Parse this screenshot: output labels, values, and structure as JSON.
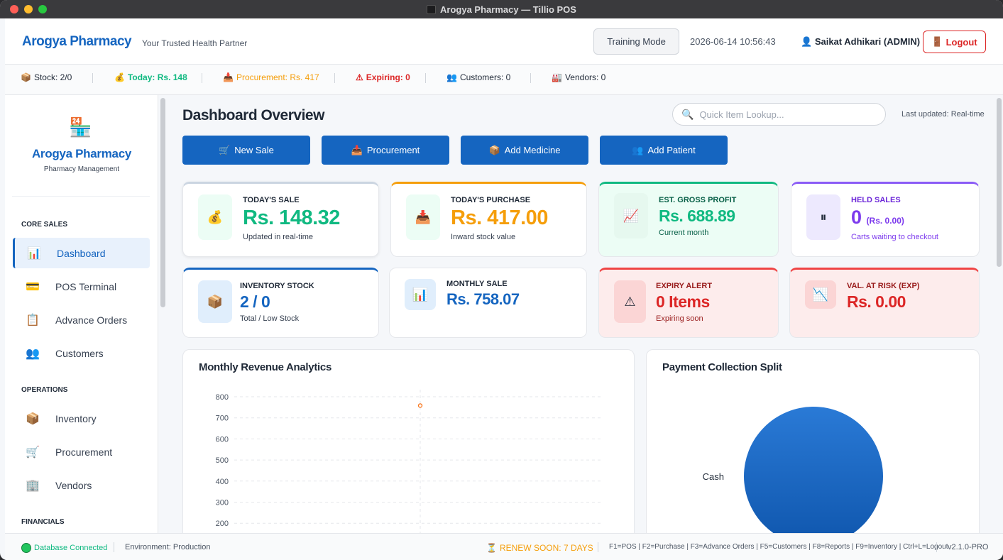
{
  "window": {
    "title": "Arogya Pharmacy — Tillio POS"
  },
  "header": {
    "brand": "Arogya Pharmacy",
    "tagline": "Your Trusted Health Partner",
    "training_mode": "Training Mode",
    "datetime": "2026-06-14 10:56:43",
    "user": "Saikat Adhikari (ADMIN)",
    "logout": "Logout"
  },
  "status_strip": {
    "stock": "Stock: 2/0",
    "today": "Today: Rs. 148",
    "procurement": "Procurement: Rs. 417",
    "expiring": "Expiring: 0",
    "customers": "Customers: 0",
    "vendors": "Vendors: 0"
  },
  "sidebar": {
    "brand": "Arogya Pharmacy",
    "subtitle": "Pharmacy Management",
    "sections": {
      "core_sales": "CORE SALES",
      "operations": "OPERATIONS",
      "financials": "FINANCIALS"
    },
    "items": [
      {
        "label": "Dashboard",
        "icon": "bar-chart-icon"
      },
      {
        "label": "POS Terminal",
        "icon": "credit-card-icon"
      },
      {
        "label": "Advance Orders",
        "icon": "clipboard-icon"
      },
      {
        "label": "Customers",
        "icon": "users-icon"
      },
      {
        "label": "Inventory",
        "icon": "package-icon"
      },
      {
        "label": "Procurement",
        "icon": "cart-icon"
      },
      {
        "label": "Vendors",
        "icon": "building-icon"
      }
    ]
  },
  "main": {
    "title": "Dashboard Overview",
    "search_placeholder": "Quick Item Lookup...",
    "last_updated": "Last updated: Real-time",
    "quick_actions": [
      "New Sale",
      "Procurement",
      "Add Medicine",
      "Add Patient"
    ]
  },
  "cards": {
    "todays_sale": {
      "label": "TODAY'S SALE",
      "value": "Rs. 148.32",
      "sub": "Updated in real-time"
    },
    "todays_purchase": {
      "label": "TODAY'S PURCHASE",
      "value": "Rs. 417.00",
      "sub": "Inward stock value"
    },
    "gross_profit": {
      "label": "EST. GROSS PROFIT",
      "value": "Rs. 688.89",
      "sub": "Current month"
    },
    "held_sales": {
      "label": "HELD SALES",
      "value": "0",
      "value_extra": "(Rs. 0.00)",
      "sub": "Carts waiting to checkout"
    },
    "inventory_stock": {
      "label": "INVENTORY STOCK",
      "value": "2 / 0",
      "sub": "Total / Low Stock"
    },
    "monthly_sale": {
      "label": "MONTHLY SALE",
      "value": "Rs. 758.07"
    },
    "expiry_alert": {
      "label": "EXPIRY ALERT",
      "value": "0 Items",
      "sub": "Expiring soon"
    },
    "value_at_risk": {
      "label": "VAL. AT RISK (EXP)",
      "value": "Rs. 0.00"
    }
  },
  "panels": {
    "revenue": "Monthly Revenue Analytics",
    "payment": "Payment Collection Split"
  },
  "chart_data": [
    {
      "type": "line",
      "title": "Monthly Revenue Analytics",
      "y_ticks": [
        200,
        300,
        400,
        500,
        600,
        700,
        800
      ],
      "ylim": [
        200,
        800
      ],
      "grid": true,
      "series": [
        {
          "values": [
            758.07
          ]
        }
      ]
    },
    {
      "type": "pie",
      "title": "Payment Collection Split",
      "categories": [
        "Cash"
      ],
      "values": [
        100
      ]
    }
  ],
  "footer": {
    "db": "Database Connected",
    "env": "Environment: Production",
    "renew": "RENEW SOON: 7 DAYS",
    "shortcuts": "F1=POS | F2=Purchase | F3=Advance Orders | F5=Customers | F8=Reports | F9=Inventory | Ctrl+L=Logout",
    "version": "v2.1.0-PRO"
  },
  "colors": {
    "brand": "#1565c0",
    "success": "#10b981",
    "warning": "#f59e0b",
    "danger": "#dc2626",
    "purple": "#7c3aed"
  }
}
